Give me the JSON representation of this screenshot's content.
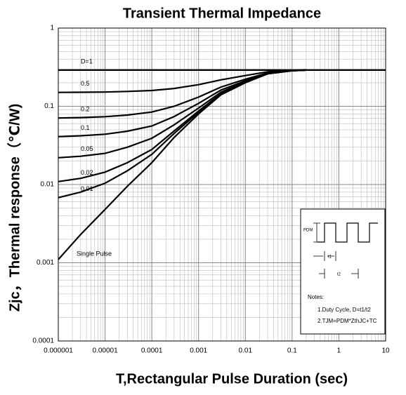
{
  "chart_data": {
    "type": "line",
    "title": "Transient Thermal Impedance",
    "x_label": "T,Rectangular Pulse Duration (sec)",
    "y_label": "Zjc，Thermal response（℃/W)",
    "log_x": true,
    "log_y": true,
    "grid": true,
    "minor_grid": true,
    "xlim": [
      1e-06,
      10
    ],
    "ylim": [
      0.0001,
      1
    ],
    "xticks": [
      1e-06,
      1e-05,
      0.0001,
      0.001,
      0.01,
      0.1,
      1,
      10
    ],
    "yticks": [
      0.0001,
      0.001,
      0.01,
      0.1,
      1
    ],
    "x": [
      1e-06,
      3e-06,
      1e-05,
      3e-05,
      0.0001,
      0.0003,
      0.001,
      0.003,
      0.01,
      0.03,
      0.1,
      0.2,
      10
    ],
    "series": [
      {
        "name": "D=1",
        "color": "#000000",
        "values": [
          0.29,
          0.29,
          0.29,
          0.29,
          0.29,
          0.29,
          0.29,
          0.29,
          0.29,
          0.29,
          0.29,
          0.29,
          0.29
        ]
      },
      {
        "name": "0.5",
        "color": "#000000",
        "values": [
          0.1505,
          0.151,
          0.152,
          0.155,
          0.159,
          0.169,
          0.189,
          0.218,
          0.247,
          0.276,
          0.288,
          0.29,
          null
        ]
      },
      {
        "name": "0.2",
        "color": "#000000",
        "values": [
          0.0708,
          0.0717,
          0.0736,
          0.0772,
          0.0844,
          0.1,
          0.131,
          0.176,
          0.222,
          0.267,
          0.286,
          0.29,
          null
        ]
      },
      {
        "name": "0.1",
        "color": "#000000",
        "values": [
          0.041,
          0.042,
          0.044,
          0.048,
          0.056,
          0.074,
          0.109,
          0.161,
          0.212,
          0.264,
          0.286,
          0.29,
          null
        ]
      },
      {
        "name": "0.05",
        "color": "#000000",
        "values": [
          0.022,
          0.023,
          0.025,
          0.03,
          0.039,
          0.058,
          0.095,
          0.151,
          0.207,
          0.262,
          0.285,
          0.29,
          null
        ]
      },
      {
        "name": "0.02",
        "color": "#000000",
        "values": [
          0.0109,
          0.012,
          0.0144,
          0.019,
          0.028,
          0.0484,
          0.087,
          0.145,
          0.203,
          0.261,
          0.285,
          0.29,
          null
        ]
      },
      {
        "name": "0.01",
        "color": "#000000",
        "values": [
          0.0068,
          0.008,
          0.0104,
          0.015,
          0.0243,
          0.045,
          0.084,
          0.143,
          0.202,
          0.26,
          0.285,
          0.29,
          null
        ]
      },
      {
        "name": "Single Pulse",
        "color": "#000000",
        "values": [
          0.0011,
          0.0023,
          0.0048,
          0.0095,
          0.019,
          0.04,
          0.08,
          0.14,
          0.2,
          0.26,
          0.285,
          0.29,
          null
        ]
      }
    ],
    "inset": {
      "pdm": "PDM",
      "t1": "t1",
      "t2": "t2",
      "notes": "Notes:",
      "note1": "1.Duty Cycle, D=t1/t2",
      "note2": "2.TJM=PDM*ZthJC+TC"
    }
  }
}
